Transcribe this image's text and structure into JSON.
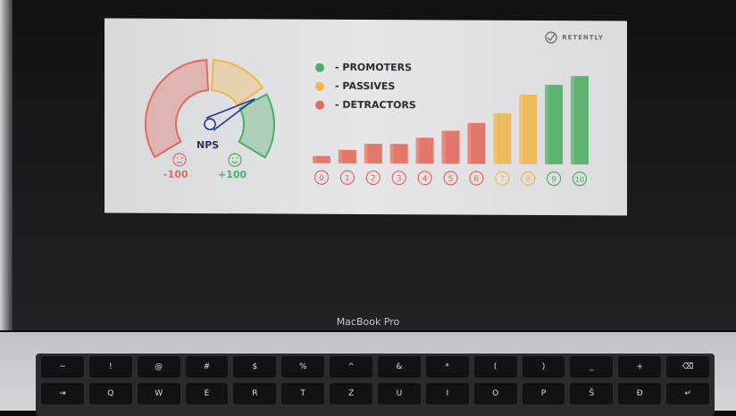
{
  "device": {
    "brand_label": "MacBook Pro"
  },
  "slide": {
    "logo_text": "RETENTLY",
    "legend": [
      {
        "label": "- PROMOTERS",
        "color": "#4caf64"
      },
      {
        "label": "- PASSIVES",
        "color": "#f0b64e"
      },
      {
        "label": "- DETRACTORS",
        "color": "#e26a5c"
      }
    ],
    "gauge": {
      "title": "NPS",
      "min_label": "-100",
      "max_label": "+100",
      "sad_icon": "sad-face-icon",
      "happy_icon": "happy-face-icon",
      "needle_level": 0.75
    },
    "colors": {
      "promoter": "#4caf64",
      "passive": "#f0b64e",
      "detractor": "#e26a5c"
    }
  },
  "chart_data": {
    "type": "bar",
    "categories": [
      "0",
      "1",
      "2",
      "3",
      "4",
      "5",
      "6",
      "7",
      "8",
      "9",
      "10"
    ],
    "values": [
      8,
      15,
      22,
      22,
      29,
      37,
      46,
      57,
      78,
      89,
      99
    ],
    "groups": [
      "detractor",
      "detractor",
      "detractor",
      "detractor",
      "detractor",
      "detractor",
      "detractor",
      "passive",
      "passive",
      "promoter",
      "promoter"
    ],
    "grid": false,
    "legend_position": "top-left"
  },
  "keyboard": {
    "rows": [
      [
        "~",
        "!",
        "@",
        "#",
        "$",
        "%",
        "^",
        "&",
        "*",
        "(",
        ")",
        "_",
        "+",
        "⌫"
      ],
      [
        "⇥",
        "Q",
        "W",
        "E",
        "R",
        "T",
        "Z",
        "U",
        "I",
        "O",
        "P",
        "Š",
        "Đ",
        "↵"
      ]
    ]
  }
}
